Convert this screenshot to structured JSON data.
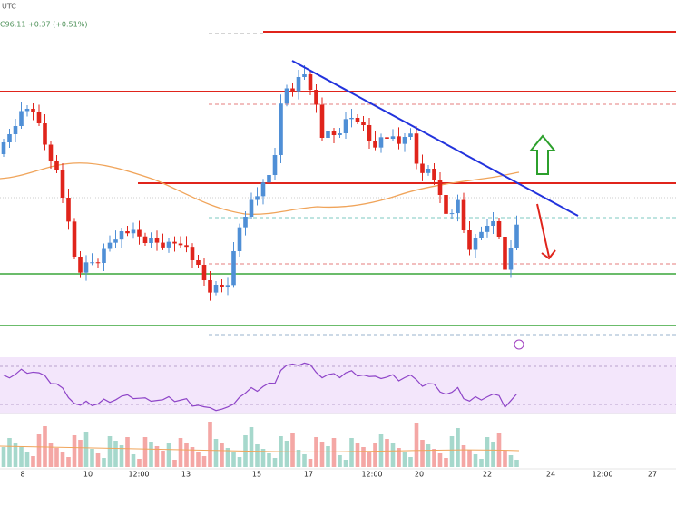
{
  "header": {
    "timezone": "UTC",
    "quote": "C96.11 +0.37 (+0.51%)"
  },
  "x_axis": {
    "labels": [
      "8",
      "10",
      "12:00",
      "13",
      "15",
      "17",
      "12:00",
      "20",
      "22",
      "24",
      "12:00",
      "27"
    ]
  }
}
